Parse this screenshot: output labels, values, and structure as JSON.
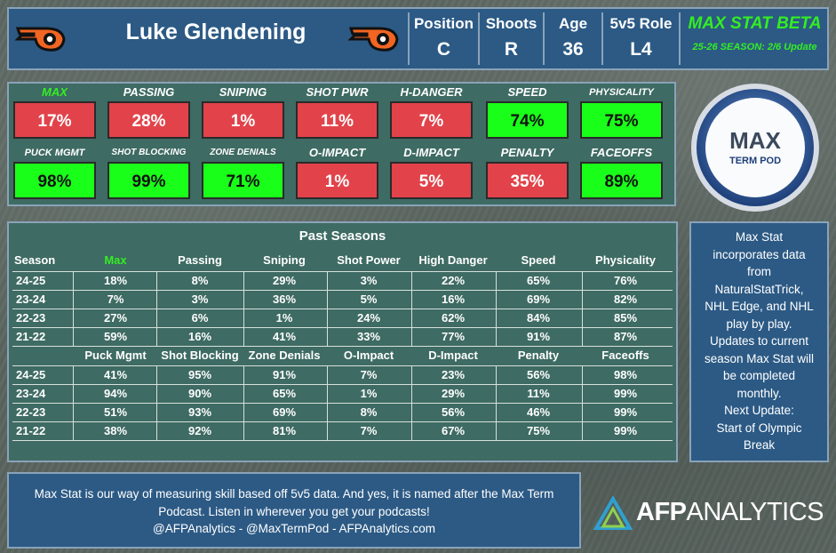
{
  "header": {
    "player_name": "Luke Glendening",
    "columns": [
      {
        "label": "Position",
        "value": "C"
      },
      {
        "label": "Shoots",
        "value": "R"
      },
      {
        "label": "Age",
        "value": "36"
      },
      {
        "label": "5v5 Role",
        "value": "L4"
      }
    ],
    "title": "MAX STAT BETA",
    "subtitle": "25-26 SEASON: 2/6 Update",
    "accent_color": "#33ee22"
  },
  "ratings": [
    {
      "label": "MAX",
      "value": "17%",
      "level": "low",
      "green_label": true
    },
    {
      "label": "PASSING",
      "value": "28%",
      "level": "low"
    },
    {
      "label": "SNIPING",
      "value": "1%",
      "level": "low"
    },
    {
      "label": "SHOT PWR",
      "value": "11%",
      "level": "low"
    },
    {
      "label": "H-DANGER",
      "value": "7%",
      "level": "low"
    },
    {
      "label": "SPEED",
      "value": "74%",
      "level": "high"
    },
    {
      "label": "PHYSICALITY",
      "value": "75%",
      "level": "high"
    },
    {
      "label": "PUCK MGMT",
      "value": "98%",
      "level": "high"
    },
    {
      "label": "SHOT BLOCKING",
      "value": "99%",
      "level": "high"
    },
    {
      "label": "ZONE DENIALS",
      "value": "71%",
      "level": "high"
    },
    {
      "label": "O-IMPACT",
      "value": "1%",
      "level": "low"
    },
    {
      "label": "D-IMPACT",
      "value": "5%",
      "level": "low"
    },
    {
      "label": "PENALTY",
      "value": "35%",
      "level": "low"
    },
    {
      "label": "FACEOFFS",
      "value": "89%",
      "level": "high"
    }
  ],
  "logo": {
    "line1": "MAX",
    "line2": "TERM POD"
  },
  "past_seasons": {
    "title": "Past Seasons",
    "table1": {
      "headers": [
        "Season",
        "Max",
        "Passing",
        "Sniping",
        "Shot Power",
        "High Danger",
        "Speed",
        "Physicality"
      ],
      "rows": [
        [
          "24-25",
          "18%",
          "8%",
          "29%",
          "3%",
          "22%",
          "65%",
          "76%"
        ],
        [
          "23-24",
          "7%",
          "3%",
          "36%",
          "5%",
          "16%",
          "69%",
          "82%"
        ],
        [
          "22-23",
          "27%",
          "6%",
          "1%",
          "24%",
          "62%",
          "84%",
          "85%"
        ],
        [
          "21-22",
          "59%",
          "16%",
          "41%",
          "33%",
          "77%",
          "91%",
          "87%"
        ]
      ]
    },
    "table2": {
      "headers": [
        "",
        "Puck Mgmt",
        "Shot Blocking",
        "Zone Denials",
        "O-Impact",
        "D-Impact",
        "Penalty",
        "Faceoffs"
      ],
      "rows": [
        [
          "24-25",
          "41%",
          "95%",
          "91%",
          "7%",
          "23%",
          "56%",
          "98%"
        ],
        [
          "23-24",
          "94%",
          "90%",
          "65%",
          "1%",
          "29%",
          "11%",
          "99%"
        ],
        [
          "22-23",
          "51%",
          "93%",
          "69%",
          "8%",
          "56%",
          "46%",
          "99%"
        ],
        [
          "21-22",
          "38%",
          "92%",
          "81%",
          "7%",
          "67%",
          "75%",
          "99%"
        ]
      ]
    }
  },
  "info": {
    "lines": [
      "Max Stat",
      "incorporates data",
      "from",
      "NaturalStatTrick,",
      "NHL Edge, and NHL",
      "play by play.",
      "Updates to current",
      "season Max Stat will",
      "be completed",
      "monthly.",
      "Next Update:",
      "Start of Olympic",
      "Break"
    ]
  },
  "footer": {
    "lines": [
      "Max Stat is our way of measuring skill based off 5v5 data. And yes, it is named after the Max Term",
      "Podcast. Listen in wherever you get your podcasts!",
      "@AFPAnalytics - @MaxTermPod - AFPAnalytics.com"
    ]
  },
  "brand": {
    "bold": "AFP",
    "thin": "ANALYTICS"
  }
}
